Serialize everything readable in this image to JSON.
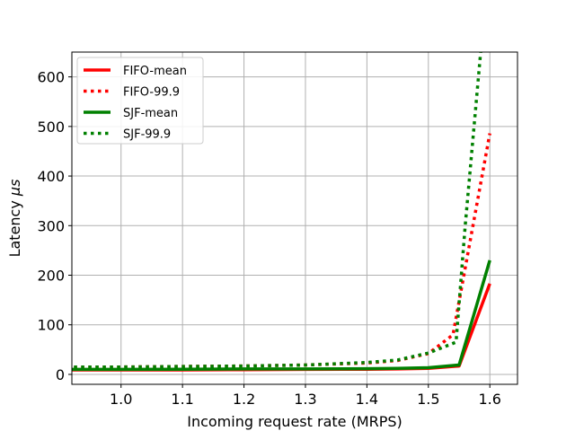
{
  "chart_data": {
    "type": "line",
    "title": "",
    "xlabel": "Incoming request rate (MRPS)",
    "ylabel_prefix": "Latency ",
    "ylabel_unit": "μs",
    "xlim": [
      0.92,
      1.645
    ],
    "ylim": [
      -20,
      650
    ],
    "xticks": [
      1.0,
      1.1,
      1.2,
      1.3,
      1.4,
      1.5,
      1.6
    ],
    "xtick_labels": [
      "1.0",
      "1.1",
      "1.2",
      "1.3",
      "1.4",
      "1.5",
      "1.6"
    ],
    "yticks": [
      0,
      100,
      200,
      300,
      400,
      500,
      600
    ],
    "ytick_labels": [
      "0",
      "100",
      "200",
      "300",
      "400",
      "500",
      "600"
    ],
    "grid": true,
    "legend_position": "top-left",
    "series": [
      {
        "name": "FIFO-mean",
        "color": "#ff0000",
        "dash": "solid",
        "x": [
          0.9,
          1.0,
          1.1,
          1.2,
          1.3,
          1.4,
          1.45,
          1.5,
          1.55,
          1.6
        ],
        "y": [
          9,
          9,
          9,
          9.5,
          10,
          10.5,
          11,
          12,
          17,
          183
        ]
      },
      {
        "name": "FIFO-99.9",
        "color": "#ff0000",
        "dash": "dotted",
        "x": [
          0.9,
          1.0,
          1.1,
          1.2,
          1.3,
          1.4,
          1.45,
          1.5,
          1.54,
          1.6
        ],
        "y": [
          14,
          15,
          16,
          17,
          19,
          23,
          28,
          42,
          80,
          486
        ]
      },
      {
        "name": "SJF-mean",
        "color": "#008000",
        "dash": "solid",
        "x": [
          0.9,
          1.0,
          1.1,
          1.2,
          1.3,
          1.4,
          1.45,
          1.5,
          1.55,
          1.6
        ],
        "y": [
          10,
          10,
          10.5,
          11,
          11,
          11.5,
          12,
          13.5,
          19,
          230
        ]
      },
      {
        "name": "SJF-99.9",
        "color": "#008000",
        "dash": "dotted",
        "x": [
          0.9,
          1.0,
          1.1,
          1.2,
          1.3,
          1.4,
          1.45,
          1.5,
          1.545,
          1.56,
          1.585
        ],
        "y": [
          15,
          15,
          16,
          17,
          19,
          24,
          29,
          43,
          65,
          300,
          650
        ]
      }
    ]
  }
}
